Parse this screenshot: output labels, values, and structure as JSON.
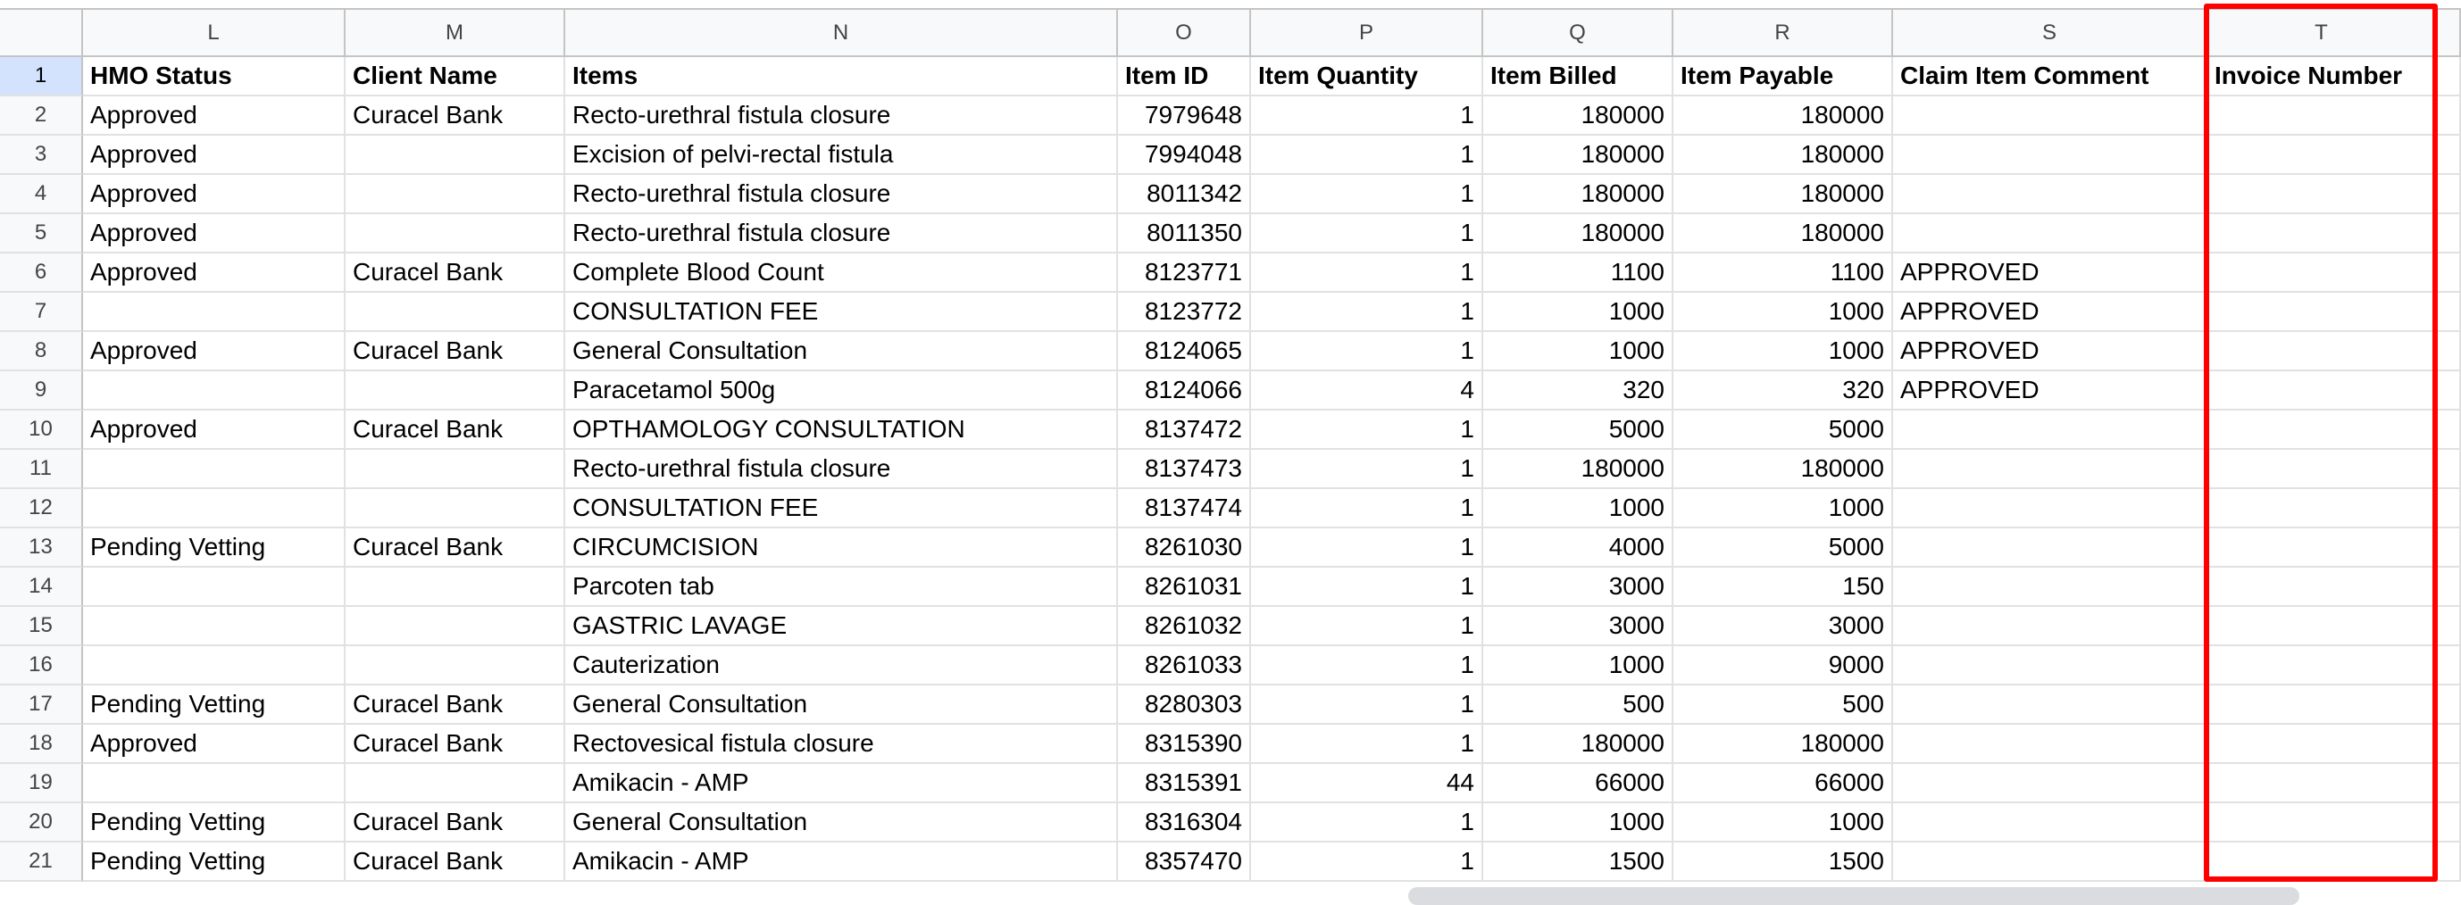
{
  "columns": [
    "L",
    "M",
    "N",
    "O",
    "P",
    "Q",
    "R",
    "S",
    "T"
  ],
  "headers": [
    "HMO Status",
    "Client Name",
    "Items",
    "Item ID",
    "Item Quantity",
    "Item Billed",
    "Item Payable",
    "Claim Item Comment",
    "Invoice Number"
  ],
  "rows": [
    [
      "Approved",
      "Curacel Bank",
      "Recto-urethral fistula closure",
      "7979648",
      "1",
      "180000",
      "180000",
      "",
      ""
    ],
    [
      "Approved",
      "",
      "Excision of pelvi-rectal fistula",
      "7994048",
      "1",
      "180000",
      "180000",
      "",
      ""
    ],
    [
      "Approved",
      "",
      "Recto-urethral fistula closure",
      "8011342",
      "1",
      "180000",
      "180000",
      "",
      ""
    ],
    [
      "Approved",
      "",
      "Recto-urethral fistula closure",
      "8011350",
      "1",
      "180000",
      "180000",
      "",
      ""
    ],
    [
      "Approved",
      "Curacel Bank",
      "Complete Blood Count",
      "8123771",
      "1",
      "1100",
      "1100",
      "APPROVED",
      ""
    ],
    [
      "",
      "",
      "CONSULTATION FEE",
      "8123772",
      "1",
      "1000",
      "1000",
      "APPROVED",
      ""
    ],
    [
      "Approved",
      "Curacel Bank",
      "General Consultation",
      "8124065",
      "1",
      "1000",
      "1000",
      "APPROVED",
      ""
    ],
    [
      "",
      "",
      "Paracetamol 500g",
      "8124066",
      "4",
      "320",
      "320",
      "APPROVED",
      ""
    ],
    [
      "Approved",
      "Curacel Bank",
      "OPTHAMOLOGY CONSULTATION",
      "8137472",
      "1",
      "5000",
      "5000",
      "",
      ""
    ],
    [
      "",
      "",
      "Recto-urethral fistula closure",
      "8137473",
      "1",
      "180000",
      "180000",
      "",
      ""
    ],
    [
      "",
      "",
      "CONSULTATION FEE",
      "8137474",
      "1",
      "1000",
      "1000",
      "",
      ""
    ],
    [
      "Pending Vetting",
      "Curacel Bank",
      "CIRCUMCISION",
      "8261030",
      "1",
      "4000",
      "5000",
      "",
      ""
    ],
    [
      "",
      "",
      "Parcoten tab",
      "8261031",
      "1",
      "3000",
      "150",
      "",
      ""
    ],
    [
      "",
      "",
      "GASTRIC LAVAGE",
      "8261032",
      "1",
      "3000",
      "3000",
      "",
      ""
    ],
    [
      "",
      "",
      "Cauterization",
      "8261033",
      "1",
      "1000",
      "9000",
      "",
      ""
    ],
    [
      "Pending Vetting",
      "Curacel Bank",
      "General Consultation",
      "8280303",
      "1",
      "500",
      "500",
      "",
      ""
    ],
    [
      "Approved",
      "Curacel Bank",
      "Rectovesical fistula closure",
      "8315390",
      "1",
      "180000",
      "180000",
      "",
      ""
    ],
    [
      "",
      "",
      "Amikacin - AMP",
      "8315391",
      "44",
      "66000",
      "66000",
      "",
      ""
    ],
    [
      "Pending Vetting",
      "Curacel Bank",
      "General Consultation",
      "8316304",
      "1",
      "1000",
      "1000",
      "",
      ""
    ],
    [
      "Pending Vetting",
      "Curacel Bank",
      "Amikacin - AMP",
      "8357470",
      "1",
      "1500",
      "1500",
      "",
      ""
    ]
  ],
  "highlight_color": "#ff0000",
  "selected_row": "1"
}
